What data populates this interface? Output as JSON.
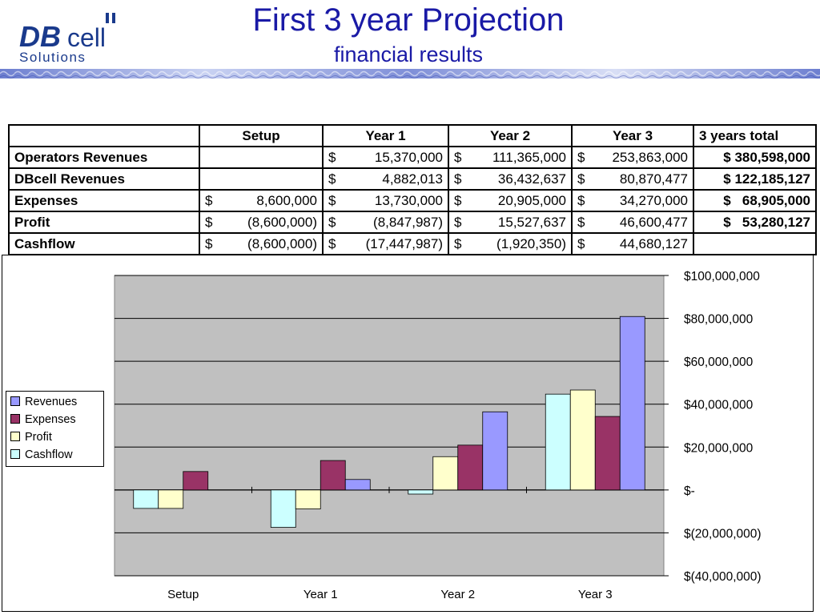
{
  "logo": {
    "text_db": "DB",
    "text_cell": "cell",
    "text_solutions": "Solutions"
  },
  "header": {
    "title": "First 3 year Projection",
    "subtitle": "financial results"
  },
  "table": {
    "columns": [
      "",
      "Setup",
      "Year 1",
      "Year 2",
      "Year 3",
      "3 years total"
    ],
    "rows": [
      {
        "label": "Operators Revenues",
        "cells": [
          [
            "",
            ""
          ],
          [
            "$",
            "15,370,000"
          ],
          [
            "$",
            "111,365,000"
          ],
          [
            "$",
            "253,863,000"
          ]
        ],
        "total": "$ 380,598,000"
      },
      {
        "label": "DBcell Revenues",
        "cells": [
          [
            "",
            ""
          ],
          [
            "$",
            "4,882,013"
          ],
          [
            "$",
            "36,432,637"
          ],
          [
            "$",
            "80,870,477"
          ]
        ],
        "total": "$ 122,185,127"
      },
      {
        "label": "Expenses",
        "cells": [
          [
            "$",
            "8,600,000"
          ],
          [
            "$",
            "13,730,000"
          ],
          [
            "$",
            "20,905,000"
          ],
          [
            "$",
            "34,270,000"
          ]
        ],
        "total": "$   68,905,000"
      },
      {
        "label": "Profit",
        "cells": [
          [
            "$",
            "(8,600,000)"
          ],
          [
            "$",
            "(8,847,987)"
          ],
          [
            "$",
            "15,527,637"
          ],
          [
            "$",
            "46,600,477"
          ]
        ],
        "total": "$   53,280,127"
      },
      {
        "label": "Cashflow",
        "cells": [
          [
            "$",
            "(8,600,000)"
          ],
          [
            "$",
            "(17,447,987)"
          ],
          [
            "$",
            "(1,920,350)"
          ],
          [
            "$",
            "44,680,127"
          ]
        ],
        "total": ""
      }
    ]
  },
  "chart_data": {
    "type": "bar",
    "categories": [
      "Setup",
      "Year 1",
      "Year 2",
      "Year 3"
    ],
    "series": [
      {
        "name": "Cashflow",
        "color": "#ccffff",
        "values": [
          -8600000,
          -17447987,
          -1920350,
          44680127
        ]
      },
      {
        "name": "Profit",
        "color": "#ffffcc",
        "values": [
          -8600000,
          -8847987,
          15527637,
          46600477
        ]
      },
      {
        "name": "Expenses",
        "color": "#993366",
        "values": [
          8600000,
          13730000,
          20905000,
          34270000
        ]
      },
      {
        "name": "Revenues",
        "color": "#9999ff",
        "values": [
          null,
          4882013,
          36432637,
          80870477
        ]
      }
    ],
    "legend_order": [
      "Revenues",
      "Expenses",
      "Profit",
      "Cashflow"
    ],
    "legend_position": "left",
    "yaxis_position": "right",
    "ylim": [
      -40000000,
      100000000
    ],
    "yticks": [
      100000000,
      80000000,
      60000000,
      40000000,
      20000000,
      0,
      -20000000,
      -40000000
    ],
    "ytick_labels": [
      "$100,000,000",
      "$80,000,000",
      "$60,000,000",
      "$40,000,000",
      "$20,000,000",
      "$-",
      "$(20,000,000)",
      "$(40,000,000)"
    ],
    "plot_background": "#c0c0c0",
    "grid": true
  }
}
